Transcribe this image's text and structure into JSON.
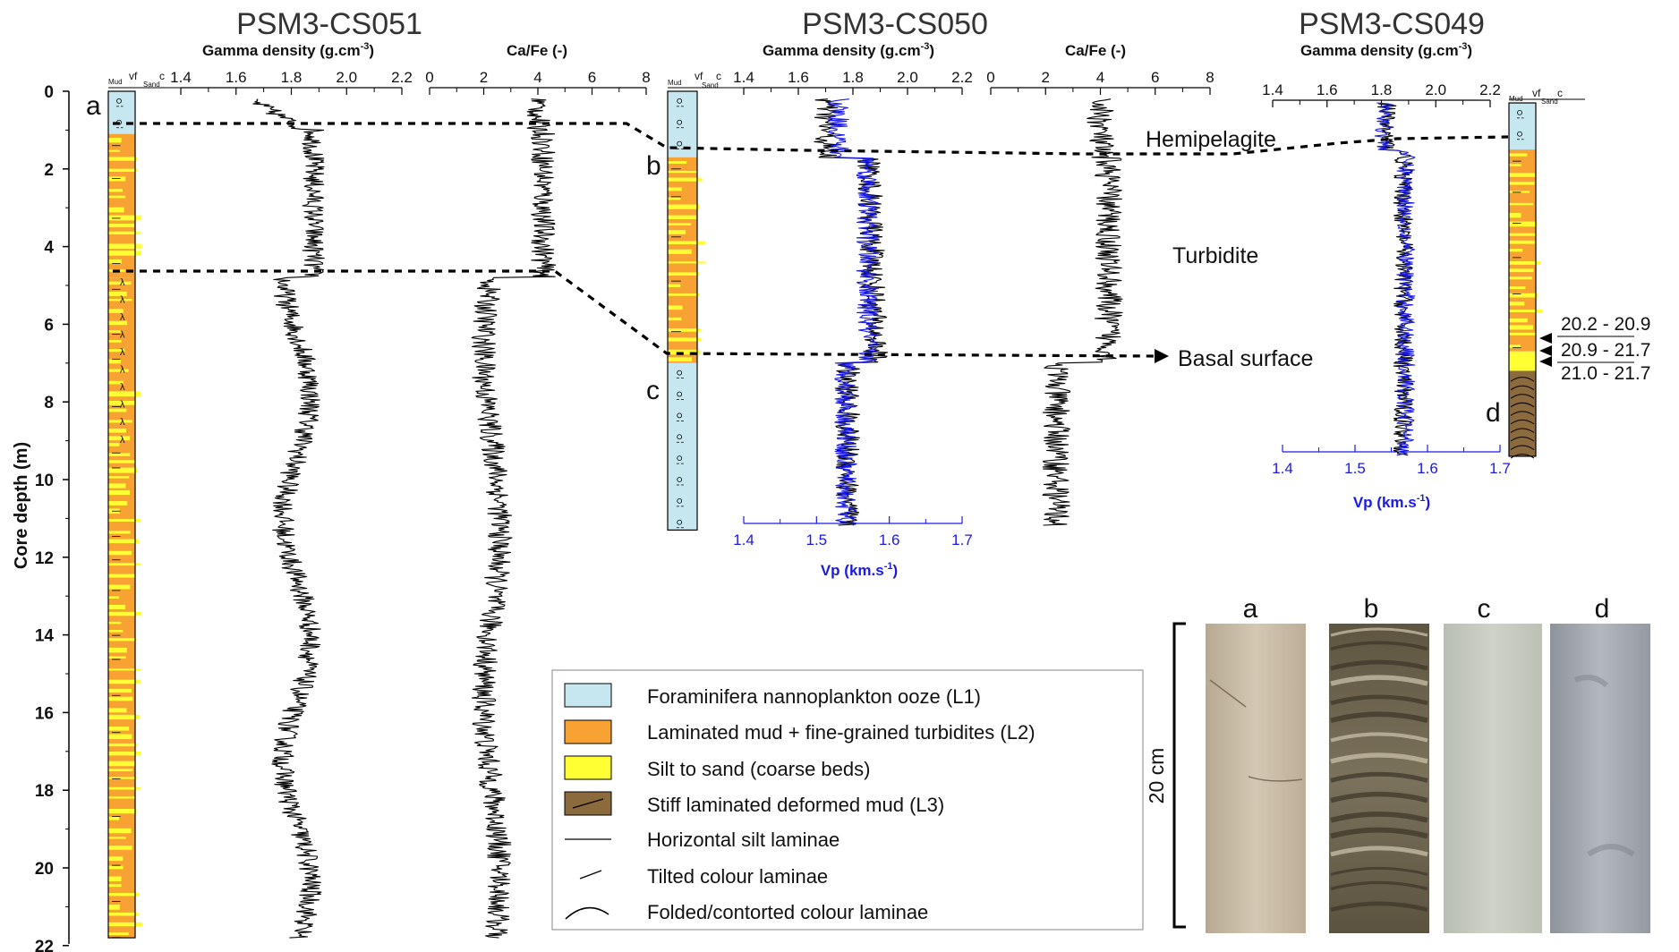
{
  "cores": [
    {
      "id": "cs051",
      "title": "PSM3-CS051"
    },
    {
      "id": "cs050",
      "title": "PSM3-CS050"
    },
    {
      "id": "cs049",
      "title": "PSM3-CS049"
    }
  ],
  "axes": {
    "gamma_label": "Gamma density (g.cm",
    "gamma_sup": "-3",
    "gamma_ticks": [
      "1.4",
      "1.6",
      "1.8",
      "2.0",
      "2.2"
    ],
    "cafe_label": "Ca/Fe (-)",
    "cafe_ticks": [
      "0",
      "2",
      "4",
      "6",
      "8"
    ],
    "vp_label": "Vp (km.s",
    "vp_sup": "-1",
    "vp_ticks": [
      "1.4",
      "1.5",
      "1.6",
      "1.7"
    ],
    "depth_label": "Core depth (m)",
    "depth_ticks": [
      "0",
      "2",
      "4",
      "6",
      "8",
      "10",
      "12",
      "14",
      "16",
      "18",
      "20",
      "22"
    ],
    "grain_mud": "Mud",
    "grain_vf": "vf",
    "grain_c": "c",
    "grain_sand": "Sand",
    "depth_range": [
      0,
      22
    ]
  },
  "annotations": {
    "hemipelagite": "Hemipelagite",
    "turbidite": "Turbidite",
    "basal_surface": "Basal surface",
    "letters": [
      "a",
      "b",
      "c",
      "d"
    ],
    "ages": [
      "20.2 - 20.9",
      "20.9 - 21.7",
      "21.0 - 21.7"
    ]
  },
  "photos": {
    "labels": [
      "a",
      "b",
      "c",
      "d"
    ],
    "scale_label": "20 cm",
    "colors": [
      "#c9bca6",
      "#6f6650",
      "#c4c8bd",
      "#9ea3aa"
    ]
  },
  "legend": [
    {
      "key": "l1",
      "label": "Foraminifera nannoplankton ooze (L1)",
      "color": "#c6e6f0"
    },
    {
      "key": "l2",
      "label": "Laminated mud + fine-grained turbidites (L2)",
      "color": "#f7a232"
    },
    {
      "key": "silt",
      "label": "Silt to sand (coarse beds)",
      "color": "#ffff33"
    },
    {
      "key": "l3",
      "label": "Stiff laminated deformed mud (L3)",
      "color": "#8b6a3e"
    },
    {
      "key": "hsilt",
      "label": "Horizontal silt laminae",
      "color": "#000000"
    },
    {
      "key": "tilted",
      "label": "Tilted colour laminae",
      "color": "#000000"
    },
    {
      "key": "folded",
      "label": "Folded/contorted colour laminae",
      "color": "#000000"
    }
  ],
  "colors": {
    "vp_line": "#1a1ae6",
    "log_line": "#000000",
    "l1": "#c6e6f0",
    "l2": "#f7a232",
    "silt": "#ffff33",
    "l3": "#8b6a3e"
  }
}
